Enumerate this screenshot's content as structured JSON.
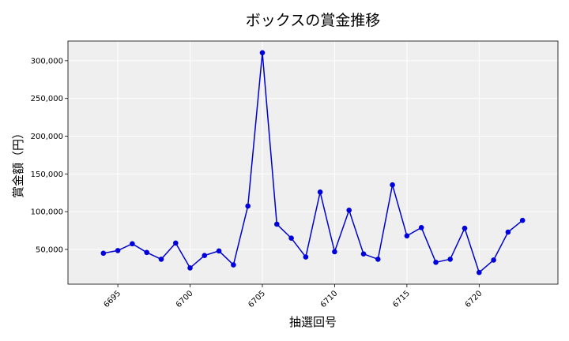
{
  "chart_data": {
    "type": "line",
    "title": "ボックスの賞金推移",
    "xlabel": "抽選回号",
    "ylabel": "賞金額（円）",
    "x": [
      6694,
      6695,
      6696,
      6697,
      6698,
      6699,
      6700,
      6701,
      6702,
      6703,
      6704,
      6705,
      6706,
      6707,
      6708,
      6709,
      6710,
      6711,
      6712,
      6713,
      6714,
      6715,
      6716,
      6717,
      6718,
      6719,
      6720,
      6721,
      6722,
      6723
    ],
    "y": [
      45000,
      48500,
      57500,
      46000,
      37000,
      58500,
      25500,
      42000,
      48000,
      29500,
      107500,
      310500,
      83500,
      65000,
      40000,
      126000,
      47000,
      102000,
      44000,
      37000,
      135500,
      68000,
      79000,
      33000,
      37000,
      78000,
      19500,
      36000,
      73000,
      88500
    ],
    "xticks": [
      6695,
      6700,
      6705,
      6710,
      6715,
      6720
    ],
    "xtick_labels": [
      "6695",
      "6700",
      "6705",
      "6710",
      "6715",
      "6720"
    ],
    "yticks": [
      50000,
      100000,
      150000,
      200000,
      250000,
      300000
    ],
    "ytick_labels": [
      "50,000",
      "100,000",
      "150,000",
      "200,000",
      "250,000",
      "300,000"
    ],
    "xlim": [
      6691.55,
      6725.45
    ],
    "ylim": [
      4000,
      326000
    ],
    "grid": true,
    "colors": {
      "line": "#0000cc",
      "marker": "#0000dd",
      "plot_bg": "#efefef",
      "grid": "#ffffff"
    }
  }
}
